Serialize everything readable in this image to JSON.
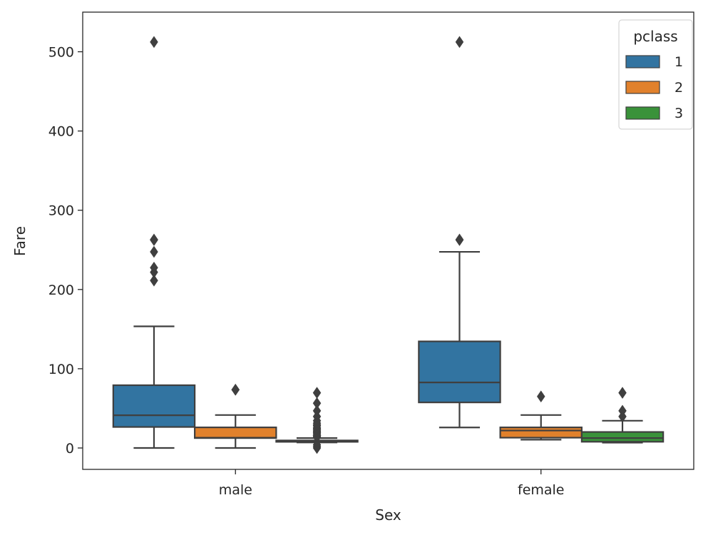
{
  "chart_data": {
    "type": "box",
    "xlabel": "Sex",
    "ylabel": "Fare",
    "categories": [
      "male",
      "female"
    ],
    "ylim": [
      -27,
      550
    ],
    "yticks": [
      0,
      100,
      200,
      300,
      400,
      500
    ],
    "legend": {
      "title": "pclass",
      "position": "top-right"
    },
    "series": [
      {
        "name": "1",
        "color": "#3274a1"
      },
      {
        "name": "2",
        "color": "#e1812c"
      },
      {
        "name": "3",
        "color": "#3a923a"
      }
    ],
    "boxes": [
      {
        "category": "male",
        "series": "1",
        "whisker_low": 0,
        "q1": 26.5,
        "median": 41.3,
        "q3": 79.2,
        "whisker_high": 153.5,
        "outliers": [
          211.3,
          221.8,
          227.5,
          247.5,
          262.4,
          263.0,
          512.3
        ]
      },
      {
        "category": "male",
        "series": "2",
        "whisker_low": 0,
        "q1": 12.5,
        "median": 13.0,
        "q3": 26.0,
        "whisker_high": 41.6,
        "outliers": [
          73.5,
          73.5
        ]
      },
      {
        "category": "male",
        "series": "3",
        "whisker_low": 7.0,
        "q1": 7.75,
        "median": 7.9,
        "q3": 9.5,
        "whisker_high": 12.5,
        "outliers": [
          0,
          2,
          4,
          13.5,
          14.5,
          15.5,
          16.1,
          17.8,
          19.3,
          20.5,
          21.7,
          23.4,
          24.2,
          25.5,
          27.9,
          29.1,
          31.3,
          34.4,
          39.7,
          46.9,
          56.5,
          69.6
        ]
      },
      {
        "category": "female",
        "series": "1",
        "whisker_low": 25.9,
        "q1": 57.5,
        "median": 82.7,
        "q3": 134.5,
        "whisker_high": 247.5,
        "outliers": [
          262.4,
          263.0,
          512.3
        ]
      },
      {
        "category": "female",
        "series": "2",
        "whisker_low": 10.5,
        "q1": 13.0,
        "median": 22.0,
        "q3": 26.0,
        "whisker_high": 41.6,
        "outliers": [
          65.0
        ]
      },
      {
        "category": "female",
        "series": "3",
        "whisker_low": 6.75,
        "q1": 7.85,
        "median": 12.5,
        "q3": 20.2,
        "whisker_high": 34.4,
        "outliers": [
          39.7,
          46.9,
          69.6
        ]
      }
    ]
  }
}
